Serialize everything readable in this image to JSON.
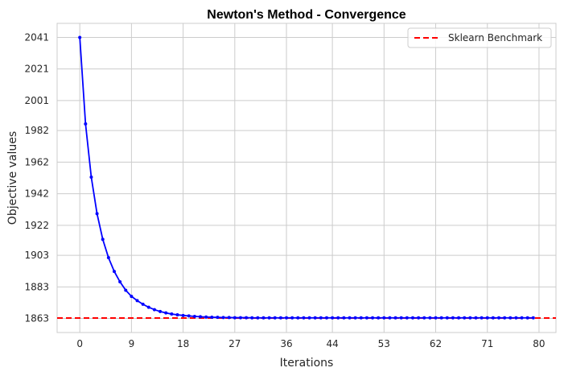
{
  "chart_data": {
    "type": "line",
    "title": "Newton's Method -  Convergence",
    "xlabel": "Iterations",
    "ylabel": "Objective values",
    "xticks": [
      0,
      9,
      18,
      27,
      36,
      44,
      53,
      62,
      71,
      80
    ],
    "yticks": [
      1863,
      1883,
      1903,
      1922,
      1942,
      1962,
      1982,
      2001,
      2021,
      2041
    ],
    "xlim": [
      -3.95,
      82.95
    ],
    "ylim": [
      1854.1,
      2049.9
    ],
    "grid": true,
    "legend": {
      "placement": "top-right",
      "entries": [
        "Sklearn Benchmark"
      ]
    },
    "benchmark": {
      "name": "Sklearn Benchmark",
      "value": 1863.3,
      "color": "#ff0000",
      "style": "dashed"
    },
    "series": [
      {
        "color": "#0000ff",
        "x": [
          0,
          1,
          2,
          3,
          4,
          5,
          6,
          7,
          8,
          9,
          10,
          11,
          12,
          13,
          14,
          15,
          16,
          17,
          18,
          19,
          20,
          21,
          22,
          23,
          24,
          25,
          26,
          27,
          28,
          29,
          30,
          31,
          32,
          33,
          34,
          35,
          36,
          37,
          38,
          39,
          40,
          41,
          42,
          43,
          44,
          45,
          46,
          47,
          48,
          49,
          50,
          51,
          52,
          53,
          54,
          55,
          56,
          57,
          58,
          59,
          60,
          61,
          62,
          63,
          64,
          65,
          66,
          67,
          68,
          69,
          70,
          71,
          72,
          73,
          74,
          75,
          76,
          77,
          78,
          79
        ],
        "values": [
          2041.0,
          1986.2,
          1952.5,
          1929.4,
          1913.1,
          1901.5,
          1892.8,
          1886.2,
          1880.9,
          1877.0,
          1874.3,
          1872.0,
          1870.1,
          1868.6,
          1867.4,
          1866.5,
          1865.8,
          1865.3,
          1864.9,
          1864.6,
          1864.3,
          1864.1,
          1863.9,
          1863.8,
          1863.7,
          1863.6,
          1863.6,
          1863.5,
          1863.5,
          1863.5,
          1863.4,
          1863.4,
          1863.4,
          1863.4,
          1863.4,
          1863.4,
          1863.4,
          1863.4,
          1863.4,
          1863.4,
          1863.4,
          1863.4,
          1863.4,
          1863.4,
          1863.4,
          1863.4,
          1863.4,
          1863.4,
          1863.4,
          1863.4,
          1863.4,
          1863.4,
          1863.4,
          1863.4,
          1863.4,
          1863.4,
          1863.4,
          1863.4,
          1863.4,
          1863.4,
          1863.4,
          1863.4,
          1863.4,
          1863.4,
          1863.4,
          1863.4,
          1863.4,
          1863.4,
          1863.4,
          1863.4,
          1863.4,
          1863.4,
          1863.4,
          1863.4,
          1863.4,
          1863.4,
          1863.4,
          1863.4,
          1863.4,
          1863.4
        ]
      }
    ]
  }
}
